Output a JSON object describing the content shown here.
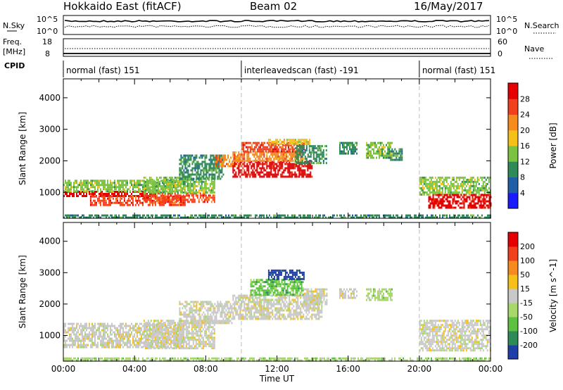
{
  "header": {
    "station": "Hokkaido East (fitACF)",
    "beam": "Beam 02",
    "date": "16/May/2017"
  },
  "panels": {
    "nsky_label": "N.Sky",
    "nsky_ticks": [
      "10^5",
      "10^0"
    ],
    "nsearch_label": "N.Search",
    "nsearch_ticks": [
      "10^5",
      "10^0"
    ],
    "freq_label": "Freq.",
    "freq_unit": "[MHz]",
    "freq_ticks": [
      "18",
      "8"
    ],
    "nave_label": "Nave",
    "nave_ticks": [
      "60",
      "0"
    ],
    "cpid_label": "CPID",
    "cpid_segments": [
      {
        "label": "normal (fast) 151",
        "start": 0,
        "end": 10
      },
      {
        "label": "interleavedscan (fast) -191",
        "start": 10,
        "end": 20
      },
      {
        "label": "normal (fast) 151",
        "start": 20,
        "end": 24
      }
    ]
  },
  "chart_data": [
    {
      "type": "heatmap",
      "name": "power",
      "ylabel": "Slant Range [km]",
      "xlabel": "",
      "xlim": [
        0,
        24
      ],
      "ylim": [
        180,
        4600
      ],
      "yticks": [
        "1000",
        "2000",
        "3000",
        "4000"
      ],
      "colorbar_label": "Power [dB]",
      "colorbar_ticks": [
        "4",
        "8",
        "12",
        "16",
        "20",
        "24",
        "28"
      ],
      "colors": [
        "#1a1aff",
        "#1f5fa8",
        "#2e8b57",
        "#7cc242",
        "#f5c018",
        "#f58a1f",
        "#f0401c",
        "#e60000"
      ],
      "regions": [
        {
          "t": [
            0,
            5.2
          ],
          "r": [
            900,
            1050
          ],
          "level": 7
        },
        {
          "t": [
            0,
            6.8
          ],
          "r": [
            1050,
            1400
          ],
          "level": 3
        },
        {
          "t": [
            1.5,
            6.8
          ],
          "r": [
            600,
            900
          ],
          "level": 6
        },
        {
          "t": [
            4.5,
            8.5
          ],
          "r": [
            700,
            1000
          ],
          "level": 6
        },
        {
          "t": [
            4.5,
            8.5
          ],
          "r": [
            1000,
            1500
          ],
          "level": 3
        },
        {
          "t": [
            6.5,
            9.0
          ],
          "r": [
            1400,
            2200
          ],
          "level": 2
        },
        {
          "t": [
            8.5,
            10.0
          ],
          "r": [
            1800,
            2200
          ],
          "level": 5
        },
        {
          "t": [
            9.5,
            14.0
          ],
          "r": [
            1500,
            2000
          ],
          "level": 7
        },
        {
          "t": [
            9.5,
            13.5
          ],
          "r": [
            2000,
            2300
          ],
          "level": 5
        },
        {
          "t": [
            10.0,
            13.5
          ],
          "r": [
            2300,
            2600
          ],
          "level": 6
        },
        {
          "t": [
            11.5,
            13.8
          ],
          "r": [
            2500,
            2700
          ],
          "level": 4
        },
        {
          "t": [
            13.0,
            14.8
          ],
          "r": [
            1900,
            2500
          ],
          "level": 2
        },
        {
          "t": [
            15.5,
            16.5
          ],
          "r": [
            2200,
            2600
          ],
          "level": 2
        },
        {
          "t": [
            17.0,
            18.5
          ],
          "r": [
            2100,
            2600
          ],
          "level": 3
        },
        {
          "t": [
            18.2,
            19.0
          ],
          "r": [
            2000,
            2400
          ],
          "level": 2
        },
        {
          "t": [
            20.0,
            24.0
          ],
          "r": [
            900,
            1500
          ],
          "level": 3
        },
        {
          "t": [
            20.5,
            24.0
          ],
          "r": [
            500,
            950
          ],
          "level": 7
        },
        {
          "t": [
            0,
            24
          ],
          "r": [
            180,
            300
          ],
          "level": 2
        }
      ]
    },
    {
      "type": "heatmap",
      "name": "velocity",
      "ylabel": "Slant Range [km]",
      "xlabel": "Time UT",
      "xlim": [
        0,
        24
      ],
      "ylim": [
        180,
        4600
      ],
      "xticks": [
        "00:00",
        "04:00",
        "08:00",
        "12:00",
        "16:00",
        "20:00",
        "00:00"
      ],
      "yticks": [
        "1000",
        "2000",
        "3000",
        "4000"
      ],
      "colorbar_label": "Velocity [m s^-1]",
      "colorbar_ticks": [
        "200",
        "100",
        "50",
        "15",
        "-15",
        "-50",
        "-100",
        "-200"
      ],
      "colors": [
        "#1f3fa8",
        "#2e8b57",
        "#5cc040",
        "#a8d86a",
        "#c8c8c8",
        "#f5c018",
        "#f58a1f",
        "#f0401c",
        "#e60000"
      ],
      "regions": [
        {
          "t": [
            0,
            6.8
          ],
          "r": [
            600,
            1400
          ],
          "level": 4
        },
        {
          "t": [
            4.5,
            8.5
          ],
          "r": [
            600,
            1500
          ],
          "level": 4
        },
        {
          "t": [
            6.5,
            9.5
          ],
          "r": [
            1400,
            2100
          ],
          "level": 4
        },
        {
          "t": [
            9.5,
            14.5
          ],
          "r": [
            1500,
            2300
          ],
          "level": 4
        },
        {
          "t": [
            10.5,
            13.5
          ],
          "r": [
            2300,
            2800
          ],
          "level": 2
        },
        {
          "t": [
            11.5,
            13.5
          ],
          "r": [
            2800,
            3100
          ],
          "level": 0
        },
        {
          "t": [
            13.5,
            14.8
          ],
          "r": [
            2000,
            2500
          ],
          "level": 4
        },
        {
          "t": [
            17.0,
            18.5
          ],
          "r": [
            2100,
            2500
          ],
          "level": 3
        },
        {
          "t": [
            15.5,
            16.5
          ],
          "r": [
            2200,
            2500
          ],
          "level": 4
        },
        {
          "t": [
            20.0,
            24.0
          ],
          "r": [
            500,
            1500
          ],
          "level": 4
        },
        {
          "t": [
            0,
            24
          ],
          "r": [
            180,
            300
          ],
          "level": 3
        }
      ]
    }
  ]
}
